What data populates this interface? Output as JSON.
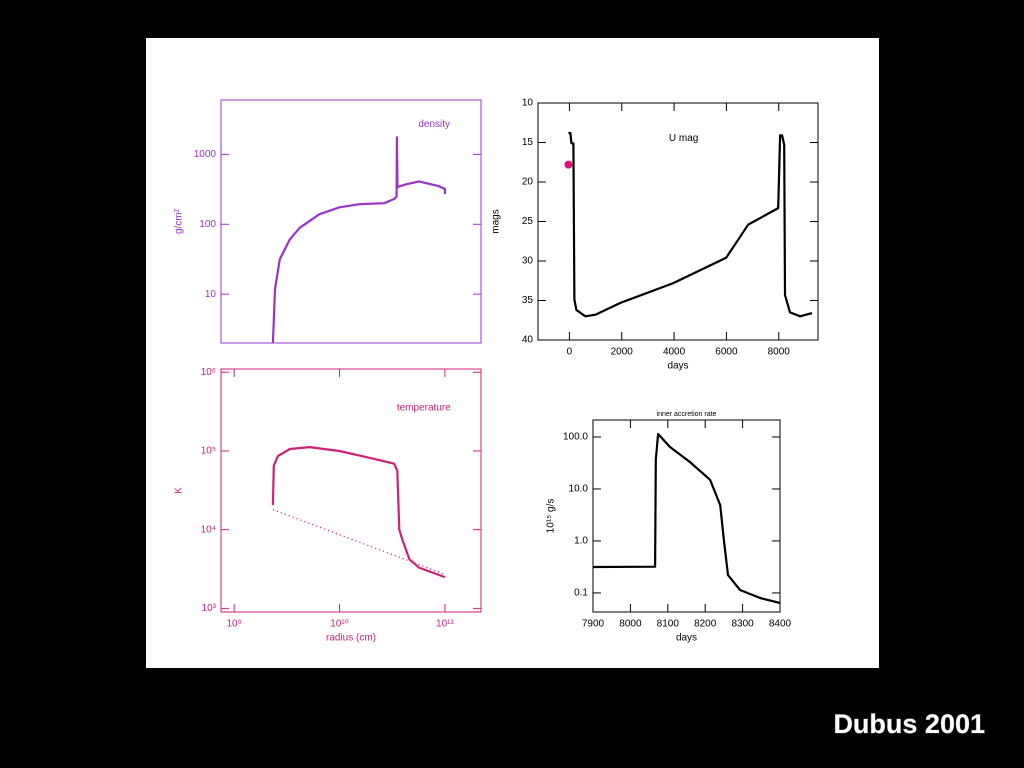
{
  "chart_data": [
    {
      "type": "line",
      "annotation": "density",
      "ylabel": "g/cm²",
      "axis_color": "#9933cc",
      "xscale": "log",
      "yscale": "log",
      "xlim": [
        750000000.0,
        220000000000.0
      ],
      "ylim": [
        2,
        6000
      ],
      "yticks": [
        10,
        100,
        1000
      ],
      "series": [
        {
          "color": "#9933cc",
          "x": [
            2330000000.0,
            2440000000.0,
            2710000000.0,
            3380000000.0,
            4190000000.0,
            6410000000.0,
            10000000000.0,
            15400000000.0,
            26500000000.0,
            33000000000.0,
            34800000000.0,
            35000000000.0,
            35500000000.0,
            42000000000.0,
            56800000000.0,
            88100000000.0,
            100000000000.0,
            100000000000.0
          ],
          "values": [
            2,
            11.8,
            31.6,
            61,
            89,
            139,
            175,
            194,
            200,
            230,
            250,
            1750,
            340,
            370,
            411,
            350,
            320,
            270
          ]
        }
      ]
    },
    {
      "type": "line",
      "annotation": "temperature",
      "xlabel": "radius (cm)",
      "ylabel": "K",
      "axis_color": "#cc2277",
      "xscale": "log",
      "yscale": "log",
      "xlim": [
        750000000.0,
        220000000000.0
      ],
      "ylim": [
        900,
        1100000.0
      ],
      "xticks": [
        {
          "value": 1000000000.0,
          "label": "10⁹"
        },
        {
          "value": 10000000000.0,
          "label": "10¹⁰"
        },
        {
          "value": 100000000000.0,
          "label": "10¹¹"
        }
      ],
      "yticks": [
        {
          "value": 1000,
          "label": "10³"
        },
        {
          "value": 10000,
          "label": "10⁴"
        },
        {
          "value": 100000,
          "label": "10⁵"
        },
        {
          "value": 1000000,
          "label": "10⁶"
        }
      ],
      "series": [
        {
          "color": "#cc2277",
          "x": [
            2330000000.0,
            2380000000.0,
            2600000000.0,
            3380000000.0,
            5200000000.0,
            10000000000.0,
            19200000000.0,
            33000000000.0,
            35300000000.0,
            36900000000.0,
            39400000000.0,
            46000000000.0,
            56800000000.0,
            100000000000.0
          ],
          "values": [
            20500,
            65000,
            86000,
            106000,
            112000,
            100000,
            82000,
            69000,
            56000,
            10000,
            7500,
            4200,
            3300,
            2500
          ]
        },
        {
          "color": "#cc2277",
          "style": "dotted",
          "x": [
            2330000000.0,
            100000000000.0
          ],
          "values": [
            18000,
            2700
          ]
        }
      ]
    },
    {
      "type": "line",
      "annotation": "U mag",
      "xlabel": "days",
      "ylabel": "mags",
      "axis_color": "#000000",
      "xlim": [
        -1200,
        9500
      ],
      "ylim": [
        10,
        40
      ],
      "y_reversed": true,
      "xticks": [
        0,
        2000,
        4000,
        6000,
        8000
      ],
      "yticks": [
        10,
        15,
        20,
        25,
        30,
        35,
        40
      ],
      "series": [
        {
          "color": "#000000",
          "x": [
            -38,
            38,
            76,
            153,
            191,
            267,
            611,
            992,
            1950,
            3970,
            5990,
            6450,
            6830,
            7980,
            8050,
            8130,
            8210,
            8240,
            8430,
            8820,
            9270
          ],
          "values": [
            13.8,
            13.8,
            15.1,
            15.1,
            34.9,
            36.2,
            37,
            36.8,
            35.3,
            32.8,
            29.6,
            27.3,
            25.4,
            23.3,
            14.1,
            14.1,
            15.3,
            34.3,
            36.5,
            37,
            36.6
          ]
        },
        {
          "color": "#dd1177",
          "style": "marker",
          "x": [
            -38
          ],
          "values": [
            17.8
          ]
        }
      ]
    },
    {
      "type": "line",
      "title": "inner accretion rate",
      "xlabel": "days",
      "ylabel": "10¹⁵ g/s",
      "axis_color": "#000000",
      "yscale": "log",
      "xlim": [
        7900,
        8400
      ],
      "ylim": [
        0.043,
        212
      ],
      "xticks": [
        7900,
        8000,
        8100,
        8200,
        8300,
        8400
      ],
      "yticks": [
        {
          "value": 0.1,
          "label": "0.1"
        },
        {
          "value": 1,
          "label": "1.0"
        },
        {
          "value": 10,
          "label": "10.0"
        },
        {
          "value": 100,
          "label": "100.0"
        }
      ],
      "series": [
        {
          "color": "#000000",
          "x": [
            7900,
            8066,
            8068,
            8074,
            8106,
            8159,
            8213,
            8240,
            8250,
            8261,
            8293,
            8347,
            8400
          ],
          "values": [
            0.316,
            0.32,
            36.1,
            114,
            64,
            33,
            15,
            4.9,
            1.03,
            0.22,
            0.114,
            0.08,
            0.064
          ]
        }
      ]
    }
  ],
  "caption": "Dubus 2001"
}
